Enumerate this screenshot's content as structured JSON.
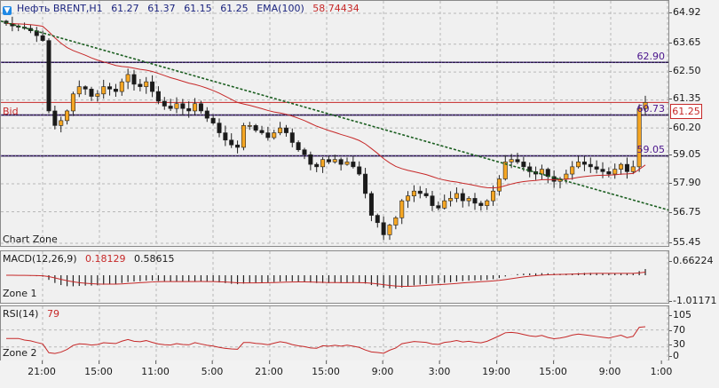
{
  "header": {
    "symbol": "Нефть BRENT,H1",
    "open": "61.27",
    "high": "61.37",
    "low": "61.15",
    "close": "61.25",
    "ema_label": "EMA(100)",
    "ema_value": "58.74434"
  },
  "labels": {
    "bid": "Bid",
    "chart_zone": "Chart Zone",
    "zone1": "Zone 1",
    "zone2": "Zone 2",
    "macd_name": "MACD(12,26,9)",
    "macd_main": "0.18129",
    "macd_signal": "0.58615",
    "rsi_name": "RSI(14)",
    "rsi_value": "79"
  },
  "levels": {
    "l1": "62.90",
    "l2": "60.73",
    "l3": "59.05",
    "current": "61.25"
  },
  "price_ticks": [
    "64.92",
    "63.65",
    "62.50",
    "61.35",
    "60.20",
    "59.05",
    "57.90",
    "56.75",
    "55.45"
  ],
  "macd_ticks": [
    "0.66224",
    "-1.01171"
  ],
  "rsi_ticks": [
    "105",
    "70",
    "30",
    "0"
  ],
  "time_ticks": [
    "21:00",
    "15:00",
    "11:00",
    "5:00",
    "21:00",
    "15:00",
    "9:00",
    "3:00",
    "19:00",
    "15:00",
    "9:00",
    "1:00"
  ],
  "colors": {
    "bull": "#f5a623",
    "bear": "#1a1a1a",
    "ema": "#c62828",
    "trend": "#1b5e20",
    "level": "#2a1b4a",
    "bid": "#c62828"
  },
  "chart_data": {
    "type": "candlestick",
    "symbol": "Нефть BRENT",
    "timeframe": "H1",
    "ylim": [
      55.45,
      64.92
    ],
    "close_series": [
      64.5,
      64.4,
      64.35,
      64.3,
      64.2,
      64.0,
      63.8,
      60.9,
      60.3,
      60.5,
      60.9,
      61.6,
      61.9,
      61.8,
      61.5,
      61.6,
      61.9,
      61.8,
      61.7,
      62.1,
      62.4,
      62.0,
      61.9,
      62.1,
      61.7,
      61.3,
      61.1,
      61.0,
      61.2,
      61.0,
      60.9,
      61.2,
      60.9,
      60.6,
      60.4,
      60.0,
      59.7,
      59.5,
      59.4,
      60.3,
      60.3,
      60.1,
      60.0,
      59.8,
      60.0,
      60.2,
      60.0,
      59.6,
      59.3,
      59.1,
      58.7,
      58.6,
      58.9,
      58.8,
      58.9,
      58.7,
      58.8,
      58.6,
      58.3,
      57.5,
      56.6,
      56.3,
      55.8,
      56.2,
      56.5,
      57.2,
      57.4,
      57.6,
      57.5,
      57.4,
      57.0,
      56.9,
      57.2,
      57.3,
      57.5,
      57.2,
      57.3,
      57.1,
      57.0,
      57.2,
      57.6,
      58.1,
      58.8,
      58.9,
      58.8,
      58.6,
      58.4,
      58.3,
      58.5,
      58.2,
      58.0,
      58.1,
      58.3,
      58.6,
      58.8,
      58.7,
      58.6,
      58.5,
      58.4,
      58.3,
      58.5,
      58.7,
      58.4,
      58.6,
      61.0,
      61.25
    ]
  }
}
